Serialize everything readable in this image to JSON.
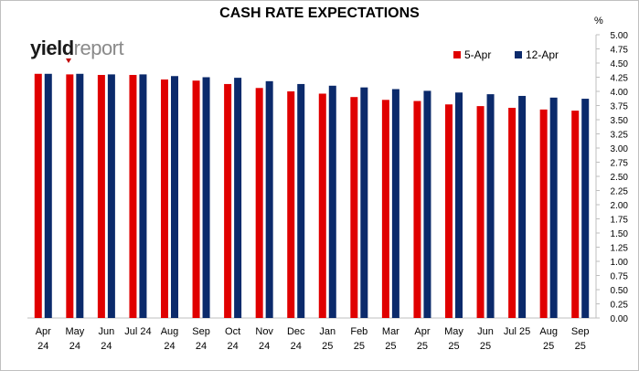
{
  "chart_data": {
    "type": "bar",
    "title": "CASH RATE EXPECTATIONS",
    "unit": "%",
    "logo": {
      "part1": "yield",
      "part2": "report"
    },
    "categories": [
      [
        "Apr",
        "24"
      ],
      [
        "May",
        "24"
      ],
      [
        "Jun",
        "24"
      ],
      [
        "Jul 24",
        ""
      ],
      [
        "Aug",
        "24"
      ],
      [
        "Sep",
        "24"
      ],
      [
        "Oct",
        "24"
      ],
      [
        "Nov",
        "24"
      ],
      [
        "Dec",
        "24"
      ],
      [
        "Jan",
        "25"
      ],
      [
        "Feb",
        "25"
      ],
      [
        "Mar",
        "25"
      ],
      [
        "Apr",
        "25"
      ],
      [
        "May",
        "25"
      ],
      [
        "Jun",
        "25"
      ],
      [
        "Jul 25",
        ""
      ],
      [
        "Aug",
        "25"
      ],
      [
        "Sep",
        "25"
      ]
    ],
    "series": [
      {
        "name": "5-Apr",
        "color": "#e00000",
        "values": [
          4.31,
          4.3,
          4.29,
          4.29,
          4.21,
          4.19,
          4.13,
          4.06,
          4.0,
          3.96,
          3.9,
          3.85,
          3.83,
          3.77,
          3.74,
          3.71,
          3.68,
          3.66
        ]
      },
      {
        "name": "12-Apr",
        "color": "#0b2a6b",
        "values": [
          4.31,
          4.31,
          4.3,
          4.3,
          4.27,
          4.25,
          4.24,
          4.18,
          4.13,
          4.1,
          4.07,
          4.04,
          4.01,
          3.98,
          3.95,
          3.92,
          3.89,
          3.87
        ]
      }
    ],
    "ylim": [
      0,
      5
    ],
    "yticks": [
      "0.00",
      "0.25",
      "0.50",
      "0.75",
      "1.00",
      "1.25",
      "1.50",
      "1.75",
      "2.00",
      "2.25",
      "2.50",
      "2.75",
      "3.00",
      "3.25",
      "3.50",
      "3.75",
      "4.00",
      "4.25",
      "4.50",
      "4.75",
      "5.00"
    ],
    "legend_position": "top-right",
    "grid": false
  }
}
